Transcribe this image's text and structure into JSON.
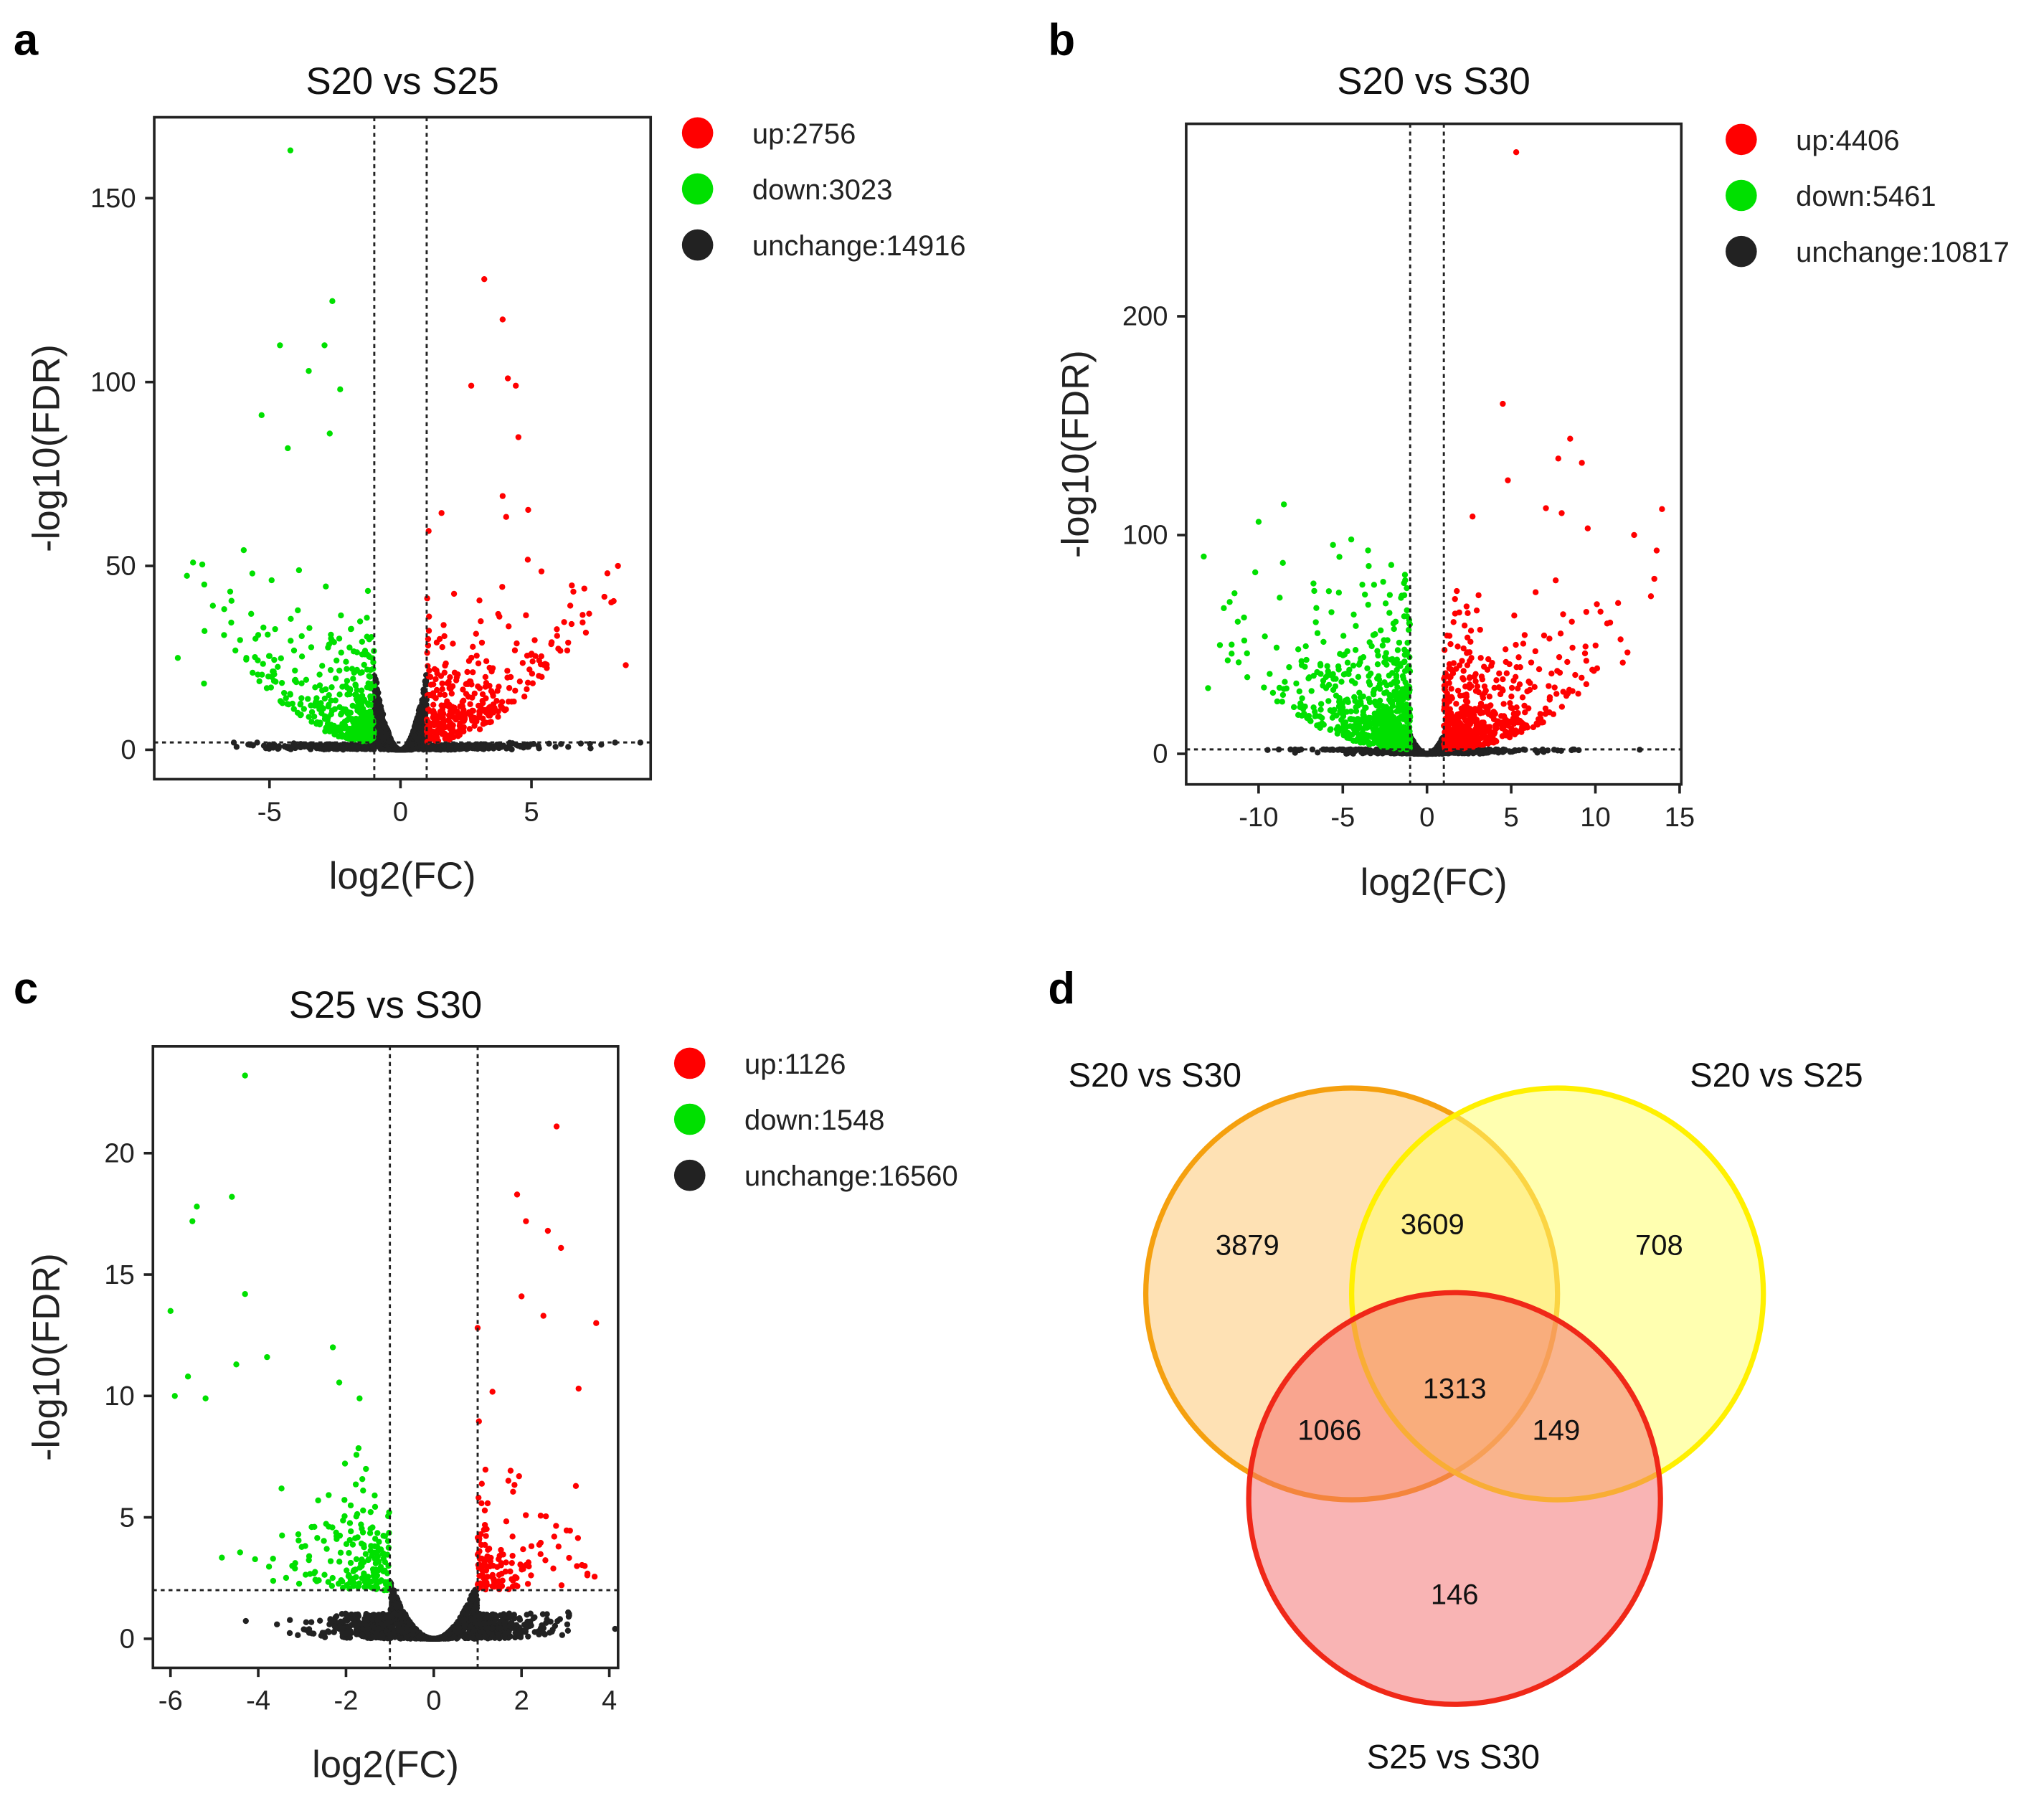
{
  "panel_letters": [
    "a",
    "b",
    "c",
    "d"
  ],
  "chart_data": [
    {
      "type": "scatter",
      "title": "S20 vs S25",
      "xlabel": "log2(FC)",
      "ylabel": "-log10(FDR)",
      "xlim": [
        -9.4,
        9.55
      ],
      "ylim": [
        -8,
        172
      ],
      "xticks": [
        "-5",
        "0",
        "5"
      ],
      "yticks": [
        "0",
        "50",
        "100",
        "150"
      ],
      "thresholds": {
        "log2fc": [
          -1,
          1
        ],
        "neg_log10_fdr": 2
      },
      "legend": [
        {
          "label": "up:2756",
          "group": "up",
          "count": 2756,
          "color": "#FF0000"
        },
        {
          "label": "down:3023",
          "group": "down",
          "count": 3023,
          "color": "#00E000"
        },
        {
          "label": "unchange:14916",
          "group": "unchange",
          "count": 14916,
          "color": "#222222"
        }
      ],
      "legend_position": "right",
      "notable_points": {
        "down": [
          [
            -4.2,
            163
          ],
          [
            -2.6,
            122
          ],
          [
            -4.6,
            110
          ],
          [
            -2.9,
            110
          ],
          [
            -3.5,
            103
          ],
          [
            -2.3,
            98
          ],
          [
            -5.3,
            91
          ],
          [
            -2.7,
            86
          ],
          [
            -4.3,
            82
          ],
          [
            -8.5,
            25
          ],
          [
            -7.5,
            18
          ],
          [
            -6.3,
            27
          ]
        ],
        "up": [
          [
            3.2,
            128
          ],
          [
            3.9,
            117
          ],
          [
            4.1,
            101
          ],
          [
            4.4,
            99
          ],
          [
            2.7,
            99
          ],
          [
            4.5,
            85
          ],
          [
            3.9,
            69
          ],
          [
            8.3,
            50
          ],
          [
            7.9,
            48
          ],
          [
            8.6,
            23
          ],
          [
            6.6,
            43
          ],
          [
            7.2,
            37
          ]
        ]
      }
    },
    {
      "type": "scatter",
      "title": "S20 vs S30",
      "xlabel": "log2(FC)",
      "ylabel": "-log10(FDR)",
      "xlim": [
        -14.3,
        15.1
      ],
      "ylim": [
        -14,
        288
      ],
      "xticks": [
        "-10",
        "-5",
        "0",
        "5",
        "10",
        "15"
      ],
      "yticks": [
        "0",
        "100",
        "200"
      ],
      "thresholds": {
        "log2fc": [
          -1,
          1
        ],
        "neg_log10_fdr": 2
      },
      "legend": [
        {
          "label": "up:4406",
          "group": "up",
          "count": 4406,
          "color": "#FF0000"
        },
        {
          "label": "down:5461",
          "group": "down",
          "count": 5461,
          "color": "#00E000"
        },
        {
          "label": "unchange:10817",
          "group": "unchange",
          "count": 10817,
          "color": "#222222"
        }
      ],
      "legend_position": "right",
      "notable_points": {
        "down": [
          [
            -8.5,
            114
          ],
          [
            -10,
            106
          ],
          [
            -10.2,
            83
          ],
          [
            -4.5,
            98
          ],
          [
            -13,
            30
          ],
          [
            -3.5,
            93
          ],
          [
            -5.2,
            90
          ]
        ],
        "up": [
          [
            5.3,
            275
          ],
          [
            4.5,
            160
          ],
          [
            8.5,
            144
          ],
          [
            9.2,
            133
          ],
          [
            7.8,
            135
          ],
          [
            12.3,
            100
          ],
          [
            13.5,
            80
          ],
          [
            13.3,
            72
          ],
          [
            10.3,
            65
          ],
          [
            8,
            110
          ],
          [
            4.8,
            125
          ]
        ]
      }
    },
    {
      "type": "scatter",
      "title": "S25 vs S30",
      "xlabel": "log2(FC)",
      "ylabel": "-log10(FDR)",
      "xlim": [
        -6.4,
        4.2
      ],
      "ylim": [
        -1.2,
        24.4
      ],
      "xticks": [
        "-6",
        "-4",
        "-2",
        "0",
        "2",
        "4"
      ],
      "yticks": [
        "0",
        "5",
        "10",
        "15",
        "20"
      ],
      "thresholds": {
        "log2fc": [
          -1,
          1
        ],
        "neg_log10_fdr": 2
      },
      "legend": [
        {
          "label": "up:1126",
          "group": "up",
          "count": 1126,
          "color": "#FF0000"
        },
        {
          "label": "down:1548",
          "group": "down",
          "count": 1548,
          "color": "#00E000"
        },
        {
          "label": "unchange:16560",
          "group": "unchange",
          "count": 16560,
          "color": "#222222"
        }
      ],
      "legend_position": "right",
      "notable_points": {
        "down": [
          [
            -4.3,
            23.2
          ],
          [
            -5.4,
            17.8
          ],
          [
            -5.5,
            17.2
          ],
          [
            -4.6,
            18.2
          ],
          [
            -6,
            13.5
          ],
          [
            -5.9,
            10
          ],
          [
            -5.6,
            10.8
          ],
          [
            -5.2,
            9.9
          ],
          [
            -4.3,
            14.2
          ],
          [
            -3.8,
            11.6
          ],
          [
            -2.3,
            12
          ],
          [
            -4.5,
            11.3
          ]
        ],
        "up": [
          [
            2.8,
            21.1
          ],
          [
            1.9,
            18.3
          ],
          [
            2.1,
            17.2
          ],
          [
            2.6,
            16.8
          ],
          [
            2.9,
            16.1
          ],
          [
            3.7,
            13
          ],
          [
            2.0,
            14.1
          ],
          [
            2.5,
            13.3
          ],
          [
            3.3,
            10.3
          ],
          [
            1.0,
            12.8
          ]
        ]
      }
    },
    {
      "type": "venn",
      "sets": [
        {
          "label": "S20 vs S30",
          "stroke": "#F5A00F",
          "fill": "#FDC46A"
        },
        {
          "label": "S20 vs S25",
          "stroke": "#FFF000",
          "fill": "#FFFF70"
        },
        {
          "label": "S25 vs S30",
          "stroke": "#F02818",
          "fill": "#F46A6A"
        }
      ],
      "regions": {
        "only_S20vsS30": "3879",
        "S20vsS30_and_S20vsS25": "3609",
        "only_S20vsS25": "708",
        "all_three": "1313",
        "S20vsS30_and_S25vsS30": "1066",
        "S20vsS25_and_S25vsS30": "149",
        "only_S25vsS30": "146"
      }
    }
  ]
}
